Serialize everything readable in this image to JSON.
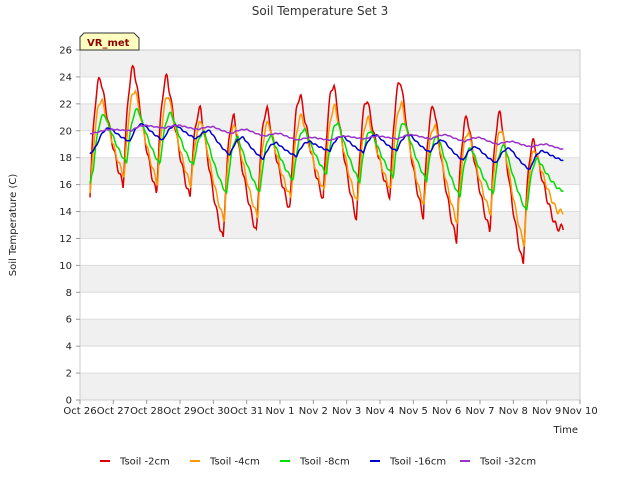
{
  "chart_data": {
    "type": "line",
    "title": "Soil Temperature Set 3",
    "xlabel": "Time",
    "ylabel": "Soil Temperature (C)",
    "badge": "VR_met",
    "xlim": [
      0,
      15
    ],
    "ylim": [
      0,
      26
    ],
    "x_ticks": [
      "Oct 26",
      "Oct 27",
      "Oct 28",
      "Oct 29",
      "Oct 30",
      "Oct 31",
      "Nov 1",
      "Nov 2",
      "Nov 3",
      "Nov 4",
      "Nov 5",
      "Nov 6",
      "Nov 7",
      "Nov 8",
      "Nov 9",
      "Nov 10"
    ],
    "y_ticks": [
      0,
      2,
      4,
      6,
      8,
      10,
      12,
      14,
      16,
      18,
      20,
      22,
      24,
      26
    ],
    "legend_position": "bottom",
    "series": [
      {
        "name": "Tsoil -2cm",
        "color": "#dd0000",
        "days": [
          {
            "min": 15.3,
            "max": 23.9
          },
          {
            "min": 15.9,
            "max": 24.7
          },
          {
            "min": 15.3,
            "max": 24.0
          },
          {
            "min": 15.0,
            "max": 21.6
          },
          {
            "min": 11.9,
            "max": 21.0
          },
          {
            "min": 12.4,
            "max": 21.6
          },
          {
            "min": 14.1,
            "max": 22.6
          },
          {
            "min": 14.9,
            "max": 23.4
          },
          {
            "min": 13.4,
            "max": 22.3
          },
          {
            "min": 15.1,
            "max": 23.7
          },
          {
            "min": 13.6,
            "max": 21.8
          },
          {
            "min": 11.8,
            "max": 21.0
          },
          {
            "min": 12.5,
            "max": 21.3
          },
          {
            "min": 10.0,
            "max": 19.2
          },
          {
            "min": 12.8,
            "max": 12.8
          }
        ]
      },
      {
        "name": "Tsoil -4cm",
        "color": "#ff9900",
        "days": [
          {
            "min": 16.0,
            "max": 22.3
          },
          {
            "min": 16.6,
            "max": 23.0
          },
          {
            "min": 16.1,
            "max": 22.6
          },
          {
            "min": 15.9,
            "max": 20.7
          },
          {
            "min": 13.3,
            "max": 20.4
          },
          {
            "min": 13.6,
            "max": 20.6
          },
          {
            "min": 15.0,
            "max": 21.1
          },
          {
            "min": 15.5,
            "max": 21.8
          },
          {
            "min": 14.6,
            "max": 20.9
          },
          {
            "min": 15.6,
            "max": 22.0
          },
          {
            "min": 14.4,
            "max": 20.4
          },
          {
            "min": 13.1,
            "max": 19.9
          },
          {
            "min": 13.8,
            "max": 20.1
          },
          {
            "min": 11.5,
            "max": 18.6
          },
          {
            "min": 14.0,
            "max": 14.0
          }
        ]
      },
      {
        "name": "Tsoil -8cm",
        "color": "#00dd00",
        "days": [
          {
            "min": 17.2,
            "max": 21.2
          },
          {
            "min": 17.6,
            "max": 21.6
          },
          {
            "min": 17.5,
            "max": 21.3
          },
          {
            "min": 17.4,
            "max": 19.9
          },
          {
            "min": 15.3,
            "max": 19.5
          },
          {
            "min": 15.4,
            "max": 19.6
          },
          {
            "min": 16.3,
            "max": 20.1
          },
          {
            "min": 16.8,
            "max": 20.6
          },
          {
            "min": 16.2,
            "max": 20.0
          },
          {
            "min": 16.6,
            "max": 20.6
          },
          {
            "min": 16.3,
            "max": 19.6
          },
          {
            "min": 15.1,
            "max": 18.7
          },
          {
            "min": 15.3,
            "max": 18.9
          },
          {
            "min": 14.0,
            "max": 17.9
          },
          {
            "min": 15.6,
            "max": 15.6
          }
        ]
      },
      {
        "name": "Tsoil -16cm",
        "color": "#0000cc",
        "days": [
          {
            "min": 18.9,
            "max": 20.2
          },
          {
            "min": 19.2,
            "max": 20.5
          },
          {
            "min": 19.3,
            "max": 20.4
          },
          {
            "min": 19.4,
            "max": 20.0
          },
          {
            "min": 18.2,
            "max": 19.5
          },
          {
            "min": 17.9,
            "max": 19.1
          },
          {
            "min": 18.1,
            "max": 19.2
          },
          {
            "min": 18.5,
            "max": 19.6
          },
          {
            "min": 18.4,
            "max": 19.7
          },
          {
            "min": 18.5,
            "max": 19.7
          },
          {
            "min": 18.4,
            "max": 19.3
          },
          {
            "min": 17.8,
            "max": 18.8
          },
          {
            "min": 17.6,
            "max": 18.7
          },
          {
            "min": 17.1,
            "max": 18.5
          },
          {
            "min": 17.8,
            "max": 17.8
          }
        ]
      },
      {
        "name": "Tsoil -32cm",
        "color": "#9933cc",
        "days": [
          {
            "min": 19.9,
            "max": 20.1
          },
          {
            "min": 20.0,
            "max": 20.4
          },
          {
            "min": 20.2,
            "max": 20.4
          },
          {
            "min": 20.1,
            "max": 20.3
          },
          {
            "min": 19.8,
            "max": 20.1
          },
          {
            "min": 19.6,
            "max": 19.8
          },
          {
            "min": 19.3,
            "max": 19.5
          },
          {
            "min": 19.3,
            "max": 19.6
          },
          {
            "min": 19.4,
            "max": 19.6
          },
          {
            "min": 19.4,
            "max": 19.7
          },
          {
            "min": 19.4,
            "max": 19.7
          },
          {
            "min": 19.2,
            "max": 19.5
          },
          {
            "min": 19.0,
            "max": 19.2
          },
          {
            "min": 18.8,
            "max": 19.0
          },
          {
            "min": 18.6,
            "max": 18.7
          }
        ]
      }
    ]
  }
}
